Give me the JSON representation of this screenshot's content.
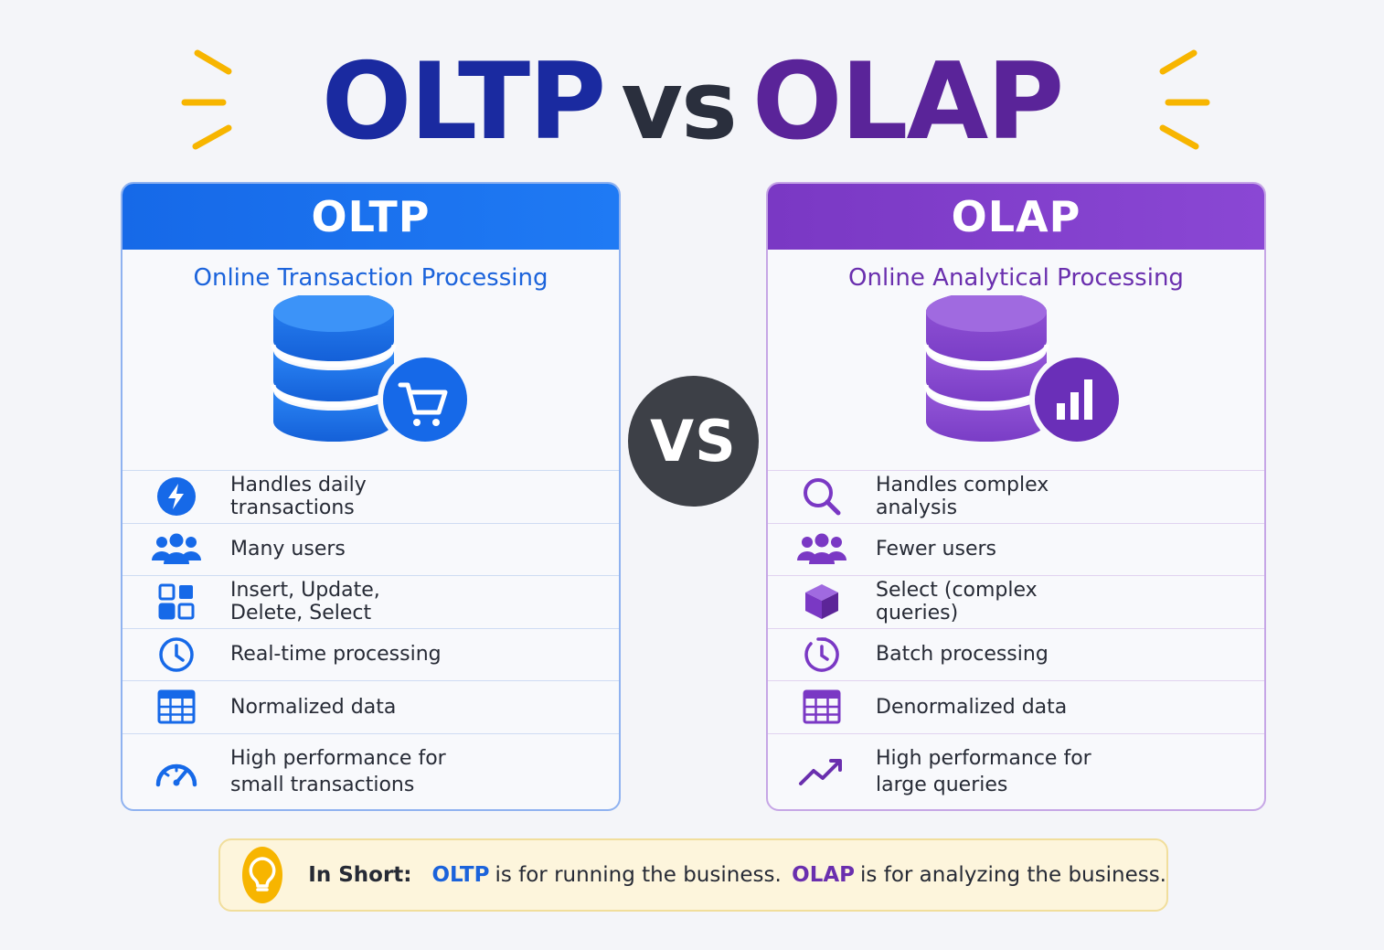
{
  "title": {
    "left": "OLTP",
    "vs": "vs",
    "right": "OLAP"
  },
  "colors": {
    "oltp": "#1669e8",
    "olap": "#7a38c4",
    "vs_circle": "#3d4047",
    "accent_yellow": "#f7b500"
  },
  "oltp": {
    "heading": "OLTP",
    "subtitle": "Online Transaction Processing",
    "hero_icons": [
      "database-icon",
      "cart-icon"
    ],
    "features": [
      {
        "icon": "lightning-icon",
        "text": "Handles daily transactions"
      },
      {
        "icon": "users-icon",
        "text": "Many users"
      },
      {
        "icon": "grid-blocks-icon",
        "text": "Insert, Update, Delete, Select"
      },
      {
        "icon": "clock-icon",
        "text": "Real-time processing"
      },
      {
        "icon": "table-icon",
        "text": "Normalized data"
      },
      {
        "icon": "speedometer-icon",
        "text": "High performance for small transactions"
      }
    ]
  },
  "vs_badge": "VS",
  "olap": {
    "heading": "OLAP",
    "subtitle": "Online Analytical Processing",
    "hero_icons": [
      "database-icon",
      "bar-chart-icon"
    ],
    "features": [
      {
        "icon": "search-icon",
        "text": "Handles complex analysis"
      },
      {
        "icon": "users-icon",
        "text": "Fewer users"
      },
      {
        "icon": "cube-icon",
        "text": "Select (complex queries)"
      },
      {
        "icon": "timer-icon",
        "text": "Batch processing"
      },
      {
        "icon": "table-icon",
        "text": "Denormalized data"
      },
      {
        "icon": "trend-up-icon",
        "text": "High performance for large queries"
      }
    ]
  },
  "summary": {
    "label": "In Short:",
    "oltp_key": "OLTP",
    "oltp_text": "is for running the business.",
    "olap_key": "OLAP",
    "olap_text": "is for analyzing the business.",
    "icon": "lightbulb-icon"
  }
}
